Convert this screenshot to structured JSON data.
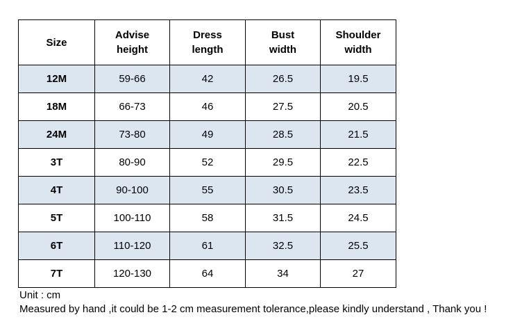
{
  "table": {
    "header": [
      "Size",
      "Advise\nheight",
      "Dress\nlength",
      "Bust\nwidth",
      "Shoulder\nwidth"
    ],
    "rows": [
      [
        "12M",
        "59-66",
        "42",
        "26.5",
        "19.5"
      ],
      [
        "18M",
        "66-73",
        "46",
        "27.5",
        "20.5"
      ],
      [
        "24M",
        "73-80",
        "49",
        "28.5",
        "21.5"
      ],
      [
        "3T",
        "80-90",
        "52",
        "29.5",
        "22.5"
      ],
      [
        "4T",
        "90-100",
        "55",
        "30.5",
        "23.5"
      ],
      [
        "5T",
        "100-110",
        "58",
        "31.5",
        "24.5"
      ],
      [
        "6T",
        "110-120",
        "61",
        "32.5",
        "25.5"
      ],
      [
        "7T",
        "120-130",
        "64",
        "34",
        "27"
      ]
    ]
  },
  "notes": [
    "Unit : cm",
    "Measured by hand ,it could be 1-2 cm measurement tolerance,please kindly understand , Thank you !"
  ]
}
